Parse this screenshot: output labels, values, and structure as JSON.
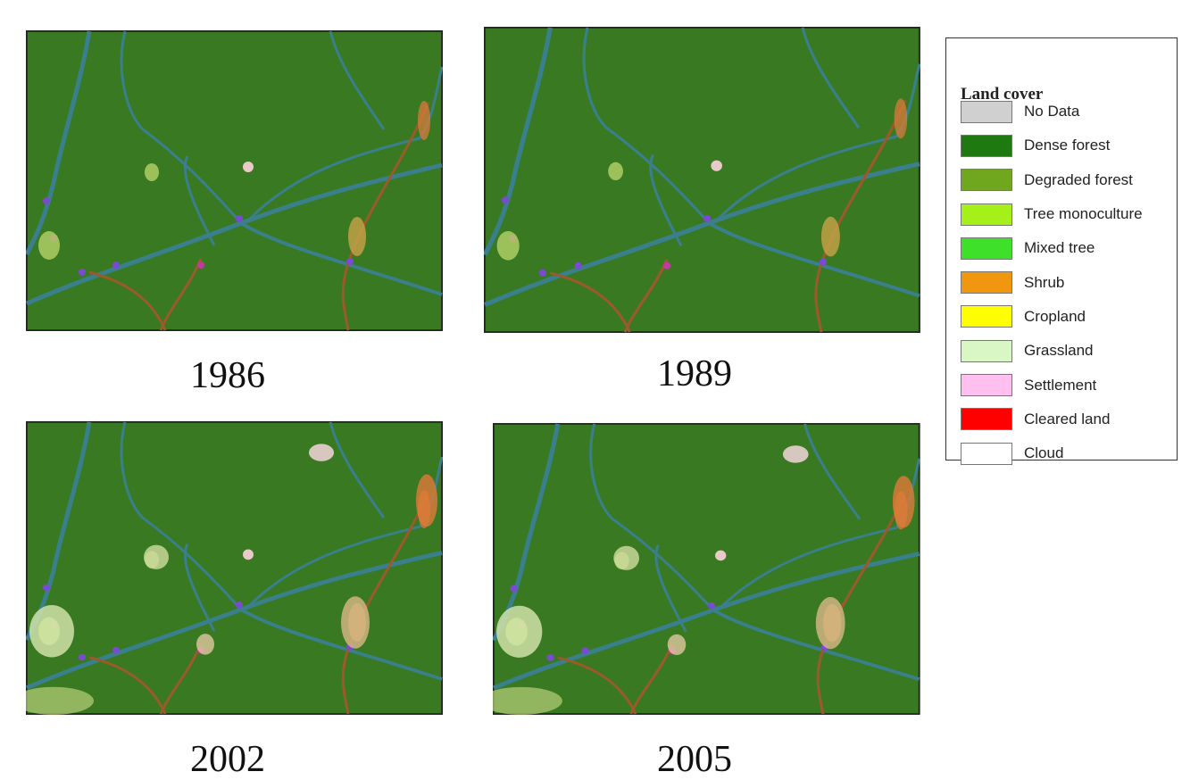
{
  "panels": [
    {
      "year": "1986"
    },
    {
      "year": "1989"
    },
    {
      "year": "2002"
    },
    {
      "year": "2005"
    }
  ],
  "legend": {
    "title": "Land cover",
    "items": [
      {
        "label": "No Data",
        "color": "#d0d0d0"
      },
      {
        "label": "Dense forest",
        "color": "#1e7a10"
      },
      {
        "label": "Degraded forest",
        "color": "#6fa81e"
      },
      {
        "label": "Tree monoculture",
        "color": "#a6f01a"
      },
      {
        "label": "Mixed tree",
        "color": "#3fe02a"
      },
      {
        "label": "Shrub",
        "color": "#f0960f"
      },
      {
        "label": "Cropland",
        "color": "#ffff00"
      },
      {
        "label": "Grassland",
        "color": "#d9f7c4"
      },
      {
        "label": "Settlement",
        "color": "#ffbfef"
      },
      {
        "label": "Cleared land",
        "color": "#ff0000"
      },
      {
        "label": "Cloud",
        "color": "#ffffff"
      }
    ]
  }
}
